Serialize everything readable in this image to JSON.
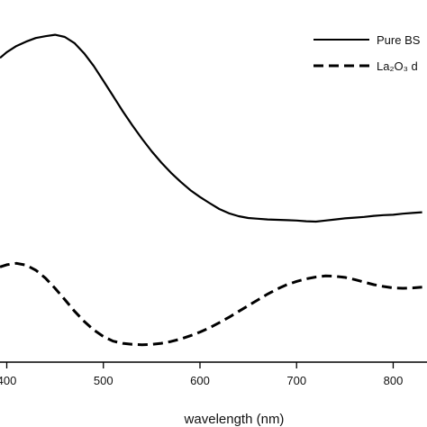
{
  "chart_data": {
    "type": "line",
    "xlabel": "wavelength (nm)",
    "ylabel": "",
    "title": "",
    "xlim": [
      393,
      835
    ],
    "ylim": [
      0,
      1
    ],
    "x_ticks": [
      {
        "value": 400,
        "label": "400"
      },
      {
        "value": 500,
        "label": "500"
      },
      {
        "value": 600,
        "label": "600"
      },
      {
        "value": 700,
        "label": "700"
      },
      {
        "value": 800,
        "label": "800"
      }
    ],
    "legend_position": "top-right",
    "series": [
      {
        "name": "Pure BS",
        "style": "solid",
        "color": "#000000",
        "points": [
          [
            393,
            0.84
          ],
          [
            400,
            0.856
          ],
          [
            410,
            0.873
          ],
          [
            420,
            0.885
          ],
          [
            430,
            0.895
          ],
          [
            440,
            0.9
          ],
          [
            450,
            0.904
          ],
          [
            460,
            0.898
          ],
          [
            470,
            0.881
          ],
          [
            480,
            0.853
          ],
          [
            490,
            0.818
          ],
          [
            500,
            0.777
          ],
          [
            510,
            0.735
          ],
          [
            520,
            0.693
          ],
          [
            530,
            0.654
          ],
          [
            540,
            0.617
          ],
          [
            550,
            0.582
          ],
          [
            560,
            0.551
          ],
          [
            570,
            0.523
          ],
          [
            580,
            0.498
          ],
          [
            590,
            0.475
          ],
          [
            600,
            0.456
          ],
          [
            610,
            0.439
          ],
          [
            620,
            0.423
          ],
          [
            630,
            0.411
          ],
          [
            640,
            0.403
          ],
          [
            650,
            0.398
          ],
          [
            660,
            0.396
          ],
          [
            670,
            0.394
          ],
          [
            680,
            0.393
          ],
          [
            690,
            0.392
          ],
          [
            700,
            0.391
          ],
          [
            710,
            0.389
          ],
          [
            720,
            0.388
          ],
          [
            730,
            0.391
          ],
          [
            740,
            0.394
          ],
          [
            750,
            0.397
          ],
          [
            760,
            0.399
          ],
          [
            770,
            0.401
          ],
          [
            780,
            0.404
          ],
          [
            790,
            0.406
          ],
          [
            800,
            0.407
          ],
          [
            810,
            0.41
          ],
          [
            820,
            0.412
          ],
          [
            830,
            0.414
          ]
        ]
      },
      {
        "name": "La₂O₃ d",
        "style": "dashed",
        "color": "#000000",
        "points": [
          [
            393,
            0.263
          ],
          [
            400,
            0.269
          ],
          [
            410,
            0.273
          ],
          [
            420,
            0.268
          ],
          [
            430,
            0.254
          ],
          [
            440,
            0.232
          ],
          [
            450,
            0.204
          ],
          [
            460,
            0.173
          ],
          [
            470,
            0.141
          ],
          [
            480,
            0.113
          ],
          [
            490,
            0.089
          ],
          [
            500,
            0.071
          ],
          [
            510,
            0.058
          ],
          [
            520,
            0.052
          ],
          [
            530,
            0.049
          ],
          [
            540,
            0.048
          ],
          [
            550,
            0.049
          ],
          [
            560,
            0.052
          ],
          [
            570,
            0.057
          ],
          [
            580,
            0.064
          ],
          [
            590,
            0.073
          ],
          [
            600,
            0.083
          ],
          [
            610,
            0.095
          ],
          [
            620,
            0.109
          ],
          [
            630,
            0.124
          ],
          [
            640,
            0.14
          ],
          [
            650,
            0.156
          ],
          [
            660,
            0.172
          ],
          [
            670,
            0.188
          ],
          [
            680,
            0.202
          ],
          [
            690,
            0.214
          ],
          [
            700,
            0.223
          ],
          [
            710,
            0.23
          ],
          [
            720,
            0.235
          ],
          [
            730,
            0.238
          ],
          [
            740,
            0.237
          ],
          [
            750,
            0.234
          ],
          [
            760,
            0.228
          ],
          [
            770,
            0.221
          ],
          [
            780,
            0.214
          ],
          [
            790,
            0.209
          ],
          [
            800,
            0.205
          ],
          [
            810,
            0.204
          ],
          [
            820,
            0.205
          ],
          [
            830,
            0.207
          ]
        ]
      }
    ]
  }
}
